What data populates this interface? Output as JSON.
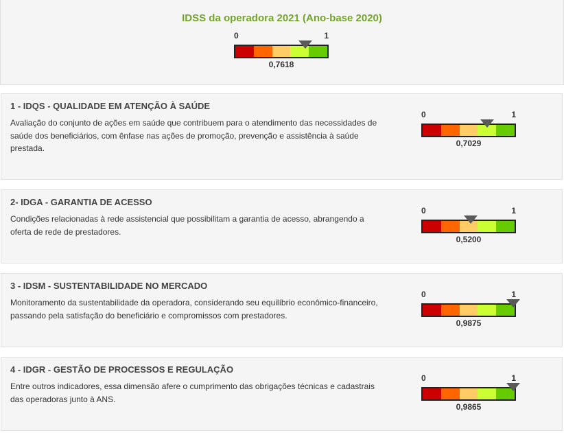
{
  "header": {
    "title": "IDSS da operadora 2021 (Ano-base 2020)",
    "gauge": {
      "min_label": "0",
      "max_label": "1",
      "value": 0.7618,
      "value_label": "0,7618"
    }
  },
  "gauge_colors": [
    "#cc0000",
    "#ff6600",
    "#ffcc66",
    "#ccff33",
    "#66cc00"
  ],
  "sections": [
    {
      "number": "1 - IDQS",
      "name": " - QUALIDADE EM ATENÇÃO À SAÚDE",
      "description": "Avaliação do conjunto de ações em saúde que contribuem para o atendimento das necessidades de saúde dos beneficiários, com ênfase nas ações de promoção, prevenção e assistência à saúde prestada.",
      "gauge": {
        "min_label": "0",
        "max_label": "1",
        "value": 0.7029,
        "value_label": "0,7029"
      }
    },
    {
      "number": "2- IDGA",
      "name": " - GARANTIA DE ACESSO",
      "description": "Condições relacionadas à rede assistencial que possibilitam a garantia de acesso, abrangendo a oferta de rede de prestadores.",
      "gauge": {
        "min_label": "0",
        "max_label": "1",
        "value": 0.52,
        "value_label": "0,5200"
      }
    },
    {
      "number": "3 - IDSM",
      "name": " - SUSTENTABILIDADE NO MERCADO",
      "description": "Monitoramento da sustentabilidade da operadora, considerando seu equilíbrio econômico-financeiro, passando pela satisfação do beneficiário e compromissos com prestadores.",
      "gauge": {
        "min_label": "0",
        "max_label": "1",
        "value": 0.9875,
        "value_label": "0,9875"
      }
    },
    {
      "number": "4 - IDGR",
      "name": " - GESTÃO DE PROCESSOS E REGULAÇÃO",
      "description": "Entre outros indicadores, essa dimensão afere o cumprimento das obrigações técnicas e cadastrais das operadoras junto à ANS.",
      "gauge": {
        "min_label": "0",
        "max_label": "1",
        "value": 0.9865,
        "value_label": "0,9865"
      }
    }
  ]
}
